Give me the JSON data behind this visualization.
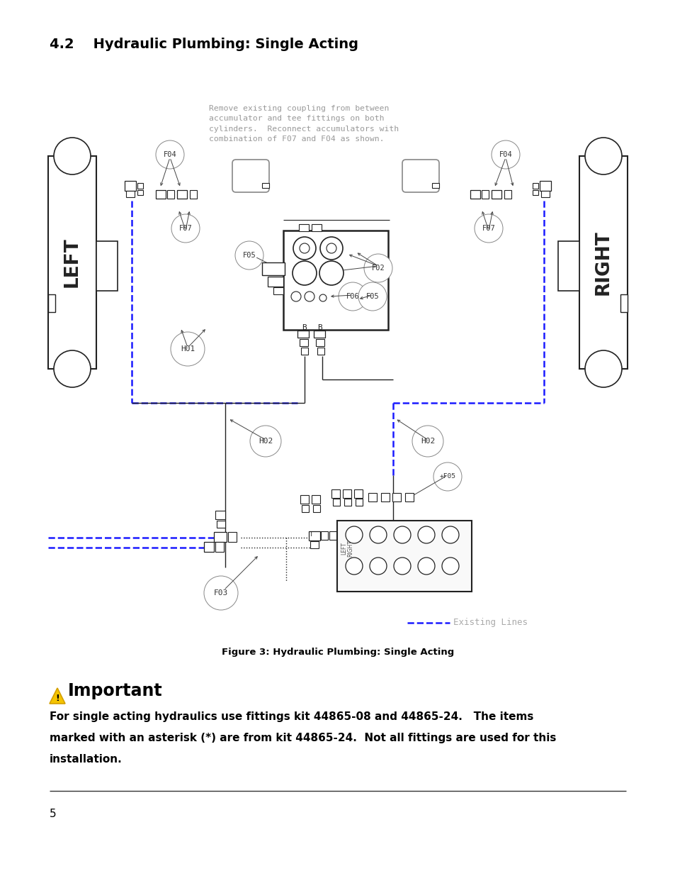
{
  "title": "4.2    Hydraulic Plumbing: Single Acting",
  "figure_caption": "Figure 3: Hydraulic Plumbing: Single Acting",
  "important_title": "Important",
  "important_text_line1": "For single acting hydraulics use fittings kit 44865-08 and 44865-24.   The items",
  "important_text_line2": "marked with an asterisk (*) are from kit 44865-24.  Not all fittings are used for this",
  "important_text_line3": "installation.",
  "note_text": "Remove existing coupling from between\naccumulator and tee fittings on both\ncylinders.  Reconnect accumulators with\ncombination of F07 and F04 as shown.",
  "existing_lines_label": "Existing Lines",
  "page_number": "5",
  "bg_color": "#ffffff",
  "text_color": "#000000",
  "blue_dashed_color": "#1a1aff",
  "gray_text_color": "#aaaaaa",
  "draw_color": "#222222"
}
